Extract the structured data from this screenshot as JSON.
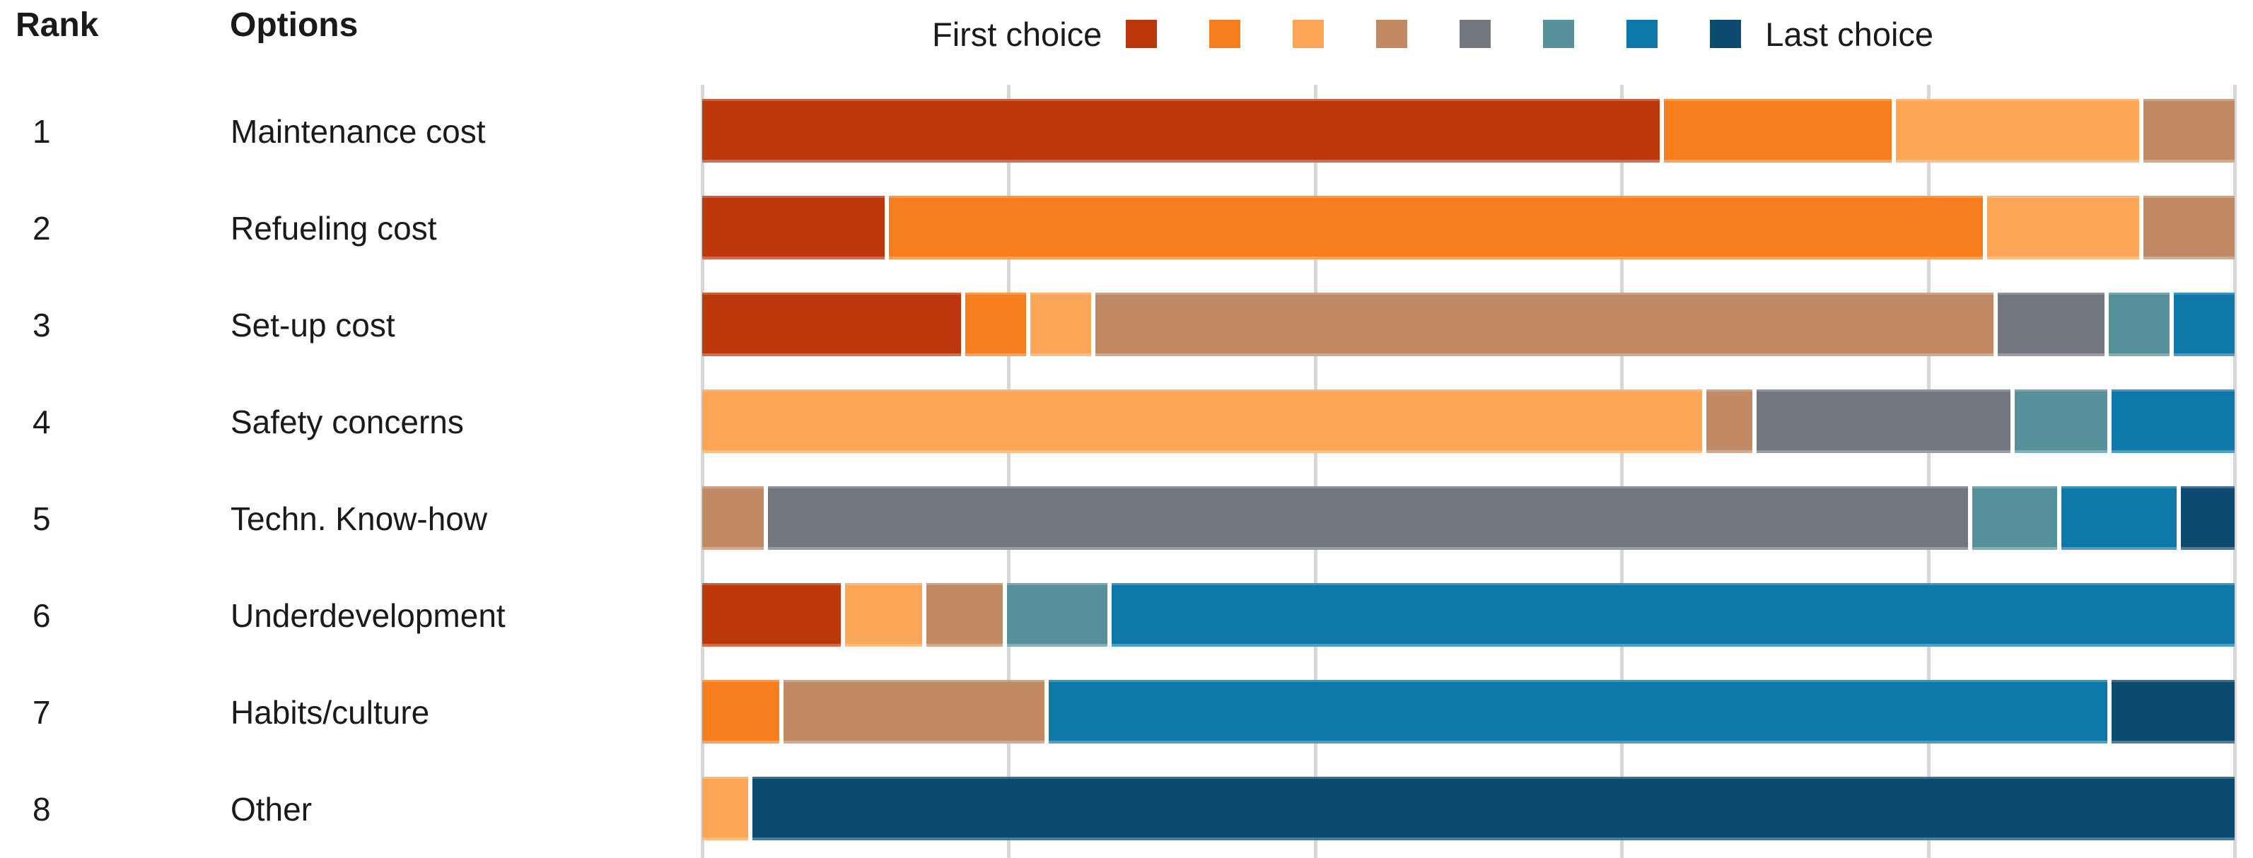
{
  "header": {
    "rank_label": "Rank",
    "options_label": "Options"
  },
  "legend": {
    "first_label": "First choice",
    "last_label": "Last choice",
    "choice_colors": [
      "#BC380C",
      "#F87D1C",
      "#FBA656",
      "#C18A64",
      "#71767F",
      "#55909B",
      "#0E78A8",
      "#0D4A70"
    ]
  },
  "chart_data": {
    "type": "bar",
    "stacked": true,
    "orientation": "horizontal",
    "values_unit": "percent of bar length (estimated from pixels)",
    "x_axis": {
      "min": 0,
      "max": 100,
      "gridline_step": 20,
      "tick_labels_visible": false,
      "grid": true,
      "gridline_color": "#d6d6d6"
    },
    "choice_levels": [
      "choice-1",
      "choice-2",
      "choice-3",
      "choice-4",
      "choice-5",
      "choice-6",
      "choice-7",
      "choice-8"
    ],
    "categories": [
      "Maintenance cost",
      "Refueling cost",
      "Set-up cost",
      "Safety concerns",
      "Techn. Know-how",
      "Underdevelopment",
      "Habits/culture",
      "Other"
    ],
    "rows": [
      {
        "rank": "1",
        "option": "Maintenance cost",
        "values": [
          63,
          15,
          16,
          6,
          0,
          0,
          0,
          0
        ]
      },
      {
        "rank": "2",
        "option": "Refueling cost",
        "values": [
          12,
          72,
          10,
          6,
          0,
          0,
          0,
          0
        ]
      },
      {
        "rank": "3",
        "option": "Set-up cost",
        "values": [
          17,
          4,
          4,
          59,
          7,
          4,
          4,
          0
        ]
      },
      {
        "rank": "4",
        "option": "Safety concerns",
        "values": [
          0,
          0,
          65,
          3,
          16.5,
          6,
          8,
          0
        ]
      },
      {
        "rank": "5",
        "option": "Techn. Know-how",
        "values": [
          0,
          0,
          0,
          4,
          78,
          5.5,
          7.5,
          3.5
        ]
      },
      {
        "rank": "6",
        "option": "Underdevelopment",
        "values": [
          9,
          0,
          5,
          5,
          0,
          6.5,
          73,
          0
        ]
      },
      {
        "rank": "7",
        "option": "Habits/culture",
        "values": [
          0,
          5,
          0,
          17,
          0,
          0,
          69,
          8
        ]
      },
      {
        "rank": "8",
        "option": "Other",
        "values": [
          0,
          0,
          3,
          0,
          0,
          0,
          0,
          97
        ]
      }
    ]
  }
}
